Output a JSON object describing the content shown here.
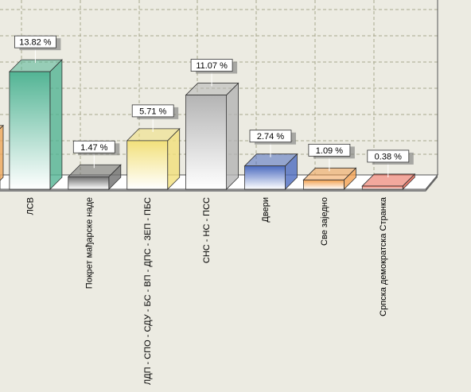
{
  "chart_data": {
    "type": "bar3d",
    "categories": [
      null,
      "ЛСВ",
      "Покрет мађарске наде",
      "ЛДП - СПО - СДУ - БС - ВП - ДПС - ЗЕП - ПБС",
      "СНС - НС - ПСС",
      "Двери",
      "Све заједно",
      "Српска демократска Странка"
    ],
    "values": [
      6.1,
      13.82,
      1.47,
      5.71,
      11.07,
      2.74,
      1.09,
      0.38
    ],
    "value_labels": [
      null,
      "13.82 %",
      "1.47 %",
      "5.71 %",
      "11.07 %",
      "2.74 %",
      "1.09 %",
      "0.38 %"
    ],
    "colors": [
      "#f0a85a",
      "#52b494",
      "#6e6e6e",
      "#f2e07a",
      "#b4b4b4",
      "#4c6cc0",
      "#f2a050",
      "#e8604c"
    ]
  }
}
